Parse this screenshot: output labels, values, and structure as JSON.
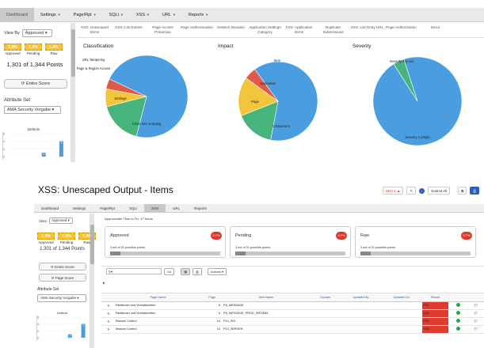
{
  "screen1": {
    "menu": [
      {
        "label": "Dashboard",
        "active": true,
        "arrow": false
      },
      {
        "label": "Settings",
        "active": false,
        "arrow": true
      },
      {
        "label": "Page/Rpt",
        "active": false,
        "arrow": true
      },
      {
        "label": "SQLi",
        "active": false,
        "arrow": true
      },
      {
        "label": "XSS",
        "active": false,
        "arrow": true
      },
      {
        "label": "URL",
        "active": false,
        "arrow": true
      },
      {
        "label": "Reports",
        "active": false,
        "arrow": true
      }
    ],
    "sidebar": {
      "view_label": "View By",
      "view_value": "Approved",
      "stats": [
        {
          "value": "1.0%",
          "caption": "Approved"
        },
        {
          "value": "1.0%",
          "caption": "Pending"
        },
        {
          "value": "1.0%",
          "caption": "Raw"
        }
      ],
      "points": "1,301 of 1,344 Points",
      "entire_score": "Entire Score",
      "attr_set_label": "Attribute Set",
      "attr_set_value": "AMA Security Vorgabe",
      "defects_title": "Defects",
      "defects": [
        {
          "label": "6",
          "value": 0
        },
        {
          "label": "4",
          "value": 0
        },
        {
          "label": "2",
          "value": 1
        },
        {
          "label": "0",
          "value": 4
        }
      ]
    },
    "tabs": [
      "XSS: Unescaped Items",
      "XSS: List Entries",
      "Page Access Protection",
      "Page Authentication",
      "Session Duration",
      "Application Settings Category",
      "XSS: Application Items",
      "Duplicate Submissions",
      "XSS: List Entry URL",
      "Page Authorization",
      "Secur"
    ],
    "colors": {
      "blue": "#4a9ee0",
      "green": "#46b47b",
      "yellow": "#f2c53d",
      "red": "#e05a4a",
      "pink": "#d98080"
    },
    "charts": [
      {
        "title": "Classification",
        "type": "pie",
        "slices": [
          {
            "label": "Cross Site Scripting",
            "value": 72,
            "color": "#4a9ee0"
          },
          {
            "label": "Settings",
            "value": 17,
            "color": "#46b47b"
          },
          {
            "label": "Page & Region Access",
            "value": 7,
            "color": "#f2c53d"
          },
          {
            "label": "URL Tampering",
            "value": 4,
            "color": "#e05a4a"
          }
        ]
      },
      {
        "title": "Impact",
        "type": "pie",
        "slices": [
          {
            "label": "Component",
            "value": 63,
            "color": "#4a9ee0"
          },
          {
            "label": "Page",
            "value": 16,
            "color": "#46b47b"
          },
          {
            "label": "Application",
            "value": 16,
            "color": "#f2c53d"
          },
          {
            "label": "Item",
            "value": 5,
            "color": "#e05a4a"
          }
        ]
      },
      {
        "title": "Severity",
        "type": "pie",
        "slices": [
          {
            "label": "Severity 1 (High)",
            "value": 96,
            "color": "#4a9ee0"
          },
          {
            "label": "Severity 3 (Low)",
            "value": 4,
            "color": "#46b47b"
          }
        ]
      }
    ]
  },
  "screen2": {
    "page_title": "XSS: Unescaped Output - Items",
    "top": {
      "sev_label": "SEV 1",
      "submit_all": "Submit All"
    },
    "menu": [
      {
        "label": "Dashboard",
        "active": false
      },
      {
        "label": "Settings",
        "active": false
      },
      {
        "label": "Page/Rpt",
        "active": false
      },
      {
        "label": "SQLi",
        "active": false
      },
      {
        "label": "XSS",
        "active": true
      },
      {
        "label": "URL",
        "active": false
      },
      {
        "label": "Reports",
        "active": false
      }
    ],
    "sidebar": {
      "view_label": "View:",
      "view_value": "Approved",
      "stats": [
        {
          "value": "1.0%",
          "caption": "Approved"
        },
        {
          "value": "1.0%",
          "caption": "Pending"
        },
        {
          "value": "1.0%",
          "caption": "Raw"
        }
      ],
      "points": "1,301 of 1,344 Points",
      "entire_score": "Entire Score",
      "page_score": "Page Score",
      "attr_set_label": "Attribute Set",
      "attr_set_value": "AMA Security Vorgabe",
      "defects_title": "Defects",
      "defects": [
        {
          "label": "6",
          "value": 0
        },
        {
          "label": "4",
          "value": 0
        },
        {
          "label": "2",
          "value": 1
        },
        {
          "label": "0",
          "value": 4
        }
      ]
    },
    "approx_time": "Approximate Time to Fix: 47 hours",
    "cards": [
      {
        "title": "Approved",
        "badge": "9.7%",
        "points": "3 out of 31 possible points",
        "fraction": 0.097
      },
      {
        "title": "Pending",
        "badge": "9.7%",
        "points": "3 out of 31 possible points",
        "fraction": 0.097
      },
      {
        "title": "Raw",
        "badge": "9.7%",
        "points": "3 out of 31 possible points",
        "fraction": 0.097
      }
    ],
    "toolbar": {
      "go": "Go",
      "actions": "Actions"
    },
    "table": {
      "headers": [
        "",
        "Page Name",
        "Page",
        "Item Name",
        "Escape",
        "Updated By",
        "Updated On",
        "Result",
        "",
        ""
      ],
      "rows": [
        {
          "page_name": "Partitionen und Vorhaltezeiten",
          "page": "5",
          "item": "P5_MESSAGE",
          "result": "FAIL"
        },
        {
          "page_name": "Partitionen und Vorhaltezeiten",
          "page": "5",
          "item": "P5_MESSAGE_PROD_INSTANZ",
          "result": "FAIL"
        },
        {
          "page_name": "Session Control",
          "page": "14",
          "item": "P14_SID",
          "result": "FAIL"
        },
        {
          "page_name": "Session Control",
          "page": "14",
          "item": "P14_SERVER",
          "result": "FAIL"
        }
      ]
    }
  }
}
